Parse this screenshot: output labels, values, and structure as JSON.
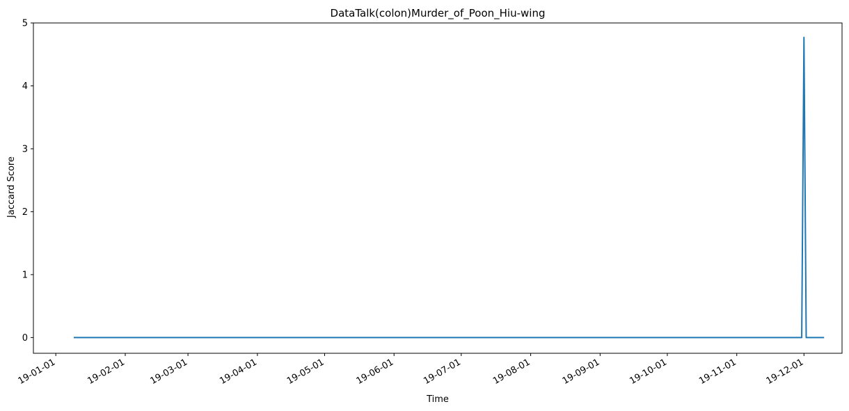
{
  "chart_data": {
    "type": "line",
    "title": "DataTalk(colon)Murder_of_Poon_Hiu-wing",
    "xlabel": "Time",
    "ylabel": "Jaccard Score",
    "x_range": [
      "2018-12-22",
      "2019-12-18"
    ],
    "ylim": [
      -0.25,
      5
    ],
    "y_ticks": [
      0,
      1,
      2,
      3,
      4,
      5
    ],
    "x_ticks": [
      {
        "date": "2019-01-01",
        "label": "19-01-01"
      },
      {
        "date": "2019-02-01",
        "label": "19-02-01"
      },
      {
        "date": "2019-03-01",
        "label": "19-03-01"
      },
      {
        "date": "2019-04-01",
        "label": "19-04-01"
      },
      {
        "date": "2019-05-01",
        "label": "19-05-01"
      },
      {
        "date": "2019-06-01",
        "label": "19-06-01"
      },
      {
        "date": "2019-07-01",
        "label": "19-07-01"
      },
      {
        "date": "2019-08-01",
        "label": "19-08-01"
      },
      {
        "date": "2019-09-01",
        "label": "19-09-01"
      },
      {
        "date": "2019-10-01",
        "label": "19-10-01"
      },
      {
        "date": "2019-11-01",
        "label": "19-11-01"
      },
      {
        "date": "2019-12-01",
        "label": "19-12-01"
      }
    ],
    "grid": false,
    "series": [
      {
        "color": "#1f77b4",
        "points": [
          {
            "x": "2019-01-09",
            "y": 0
          },
          {
            "x": "2019-11-30",
            "y": 0
          },
          {
            "x": "2019-12-01",
            "y": 4.77
          },
          {
            "x": "2019-12-02",
            "y": 0
          },
          {
            "x": "2019-12-10",
            "y": 0
          }
        ]
      }
    ]
  }
}
